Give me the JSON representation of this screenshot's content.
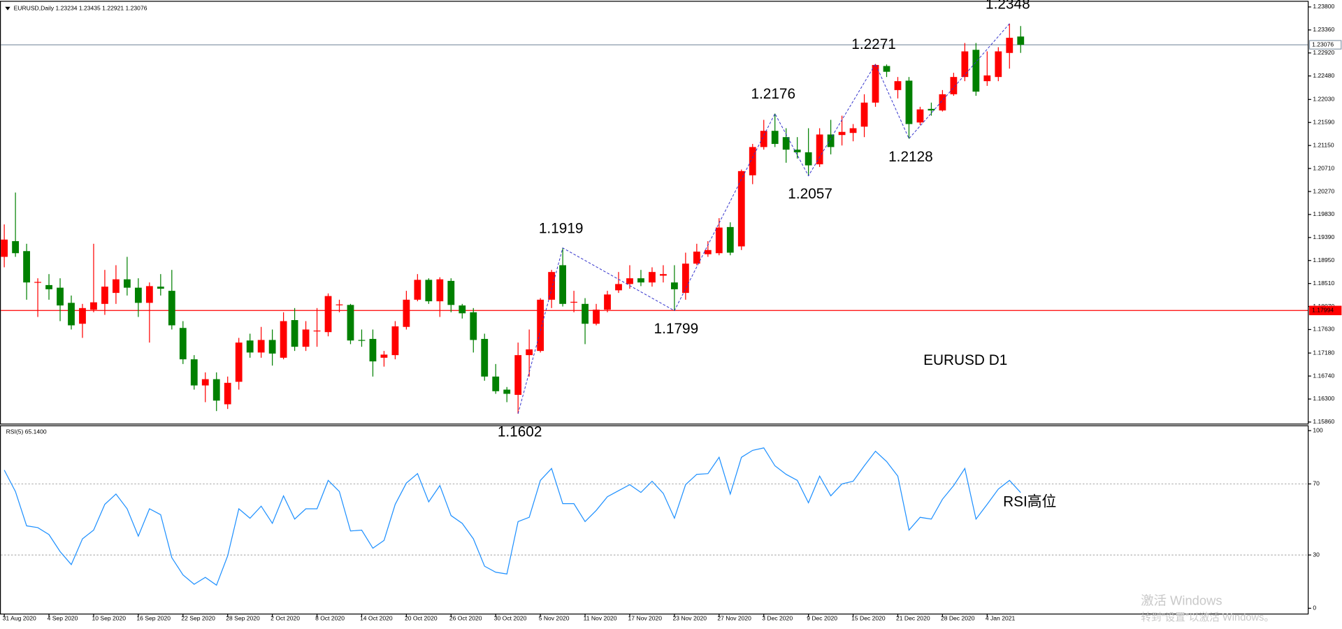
{
  "chart_data": [
    {
      "type": "candlestick",
      "title": "EURUSD,Daily  1.23234 1.23435 1.22921 1.23076",
      "label": "EURUSD D1",
      "up_color": "#ff0000",
      "down_color": "#008000",
      "categories": [
        "31 Aug 2020",
        null,
        null,
        null,
        "4 Sep 2020",
        null,
        null,
        null,
        "10 Sep 2020",
        null,
        null,
        null,
        "16 Sep 2020",
        null,
        null,
        null,
        "22 Sep 2020",
        null,
        null,
        null,
        "28 Sep 2020",
        null,
        null,
        null,
        "2 Oct 2020",
        null,
        null,
        null,
        "8 Oct 2020",
        null,
        null,
        null,
        "14 Oct 2020",
        null,
        null,
        null,
        "20 Oct 2020",
        null,
        null,
        null,
        "26 Oct 2020",
        null,
        null,
        null,
        "30 Oct 2020",
        null,
        null,
        null,
        "5 Nov 2020",
        null,
        null,
        null,
        "11 Nov 2020",
        null,
        null,
        null,
        "17 Nov 2020",
        null,
        null,
        null,
        "23 Nov 2020",
        null,
        null,
        null,
        "27 Nov 2020",
        null,
        null,
        null,
        "3 Dec 2020",
        null,
        null,
        null,
        "9 Dec 2020",
        null,
        null,
        null,
        "15 Dec 2020",
        null,
        null,
        null,
        "21 Dec 2020",
        null,
        null,
        null,
        "28 Dec 2020",
        null,
        null,
        null,
        "4 Jan 2021",
        null,
        null,
        null
      ],
      "open": [
        1.1902,
        1.1932,
        1.1913,
        1.1853,
        1.1848,
        1.1843,
        1.1814,
        1.1774,
        1.1801,
        1.1812,
        1.1833,
        1.1859,
        1.1843,
        1.1814,
        1.1845,
        1.1837,
        1.1766,
        1.1706,
        1.1656,
        1.1668,
        1.162,
        1.1663,
        1.1742,
        1.1719,
        1.1743,
        1.1709,
        1.1781,
        1.173,
        1.176,
        1.1758,
        1.181,
        1.181,
        1.1743,
        1.1745,
        1.1709,
        1.1714,
        1.1768,
        1.182,
        1.1858,
        1.1817,
        1.1856,
        1.1809,
        1.1796,
        1.1745,
        1.1673,
        1.1648,
        1.1638,
        1.1714,
        1.1722,
        1.182,
        1.1886,
        1.1815,
        1.1812,
        1.1774,
        1.1801,
        1.1838,
        1.185,
        1.1861,
        1.1853,
        1.1866,
        1.1853,
        1.1833,
        1.1889,
        1.1907,
        1.1909,
        1.1959,
        1.1922,
        1.2058,
        1.2112,
        1.2143,
        1.2131,
        1.2107,
        1.2102,
        1.2079,
        1.2136,
        1.2135,
        1.2139,
        1.2151,
        1.2197,
        1.2267,
        1.2221,
        1.2239,
        1.2159,
        1.2185,
        1.2182,
        1.2213,
        1.2246,
        1.2298,
        1.2238,
        1.2246,
        1.2292,
        1.23234
      ],
      "high": [
        1.1964,
        1.2025,
        1.1927,
        1.1861,
        1.1869,
        1.1861,
        1.1828,
        1.1812,
        1.1927,
        1.1877,
        1.1886,
        1.1902,
        1.1861,
        1.1853,
        1.1869,
        1.1877,
        1.1779,
        1.1714,
        1.1681,
        1.1681,
        1.1673,
        1.1747,
        1.1755,
        1.1768,
        1.1763,
        1.1796,
        1.1804,
        1.1779,
        1.1804,
        1.1832,
        1.182,
        1.1812,
        1.1763,
        1.1763,
        1.1722,
        1.1779,
        1.1837,
        1.1869,
        1.1861,
        1.1863,
        1.1861,
        1.1812,
        1.1804,
        1.1755,
        1.1697,
        1.1653,
        1.1738,
        1.1763,
        1.1823,
        1.1877,
        1.1919,
        1.1837,
        1.1823,
        1.1812,
        1.1837,
        1.1873,
        1.1886,
        1.1877,
        1.1882,
        1.1886,
        1.1886,
        1.191,
        1.1927,
        1.1932,
        1.1976,
        1.1968,
        1.2069,
        1.2118,
        1.2164,
        1.2176,
        1.2148,
        1.2131,
        1.2148,
        1.2148,
        1.2164,
        1.2172,
        1.2156,
        1.2213,
        1.2271,
        1.227,
        1.2246,
        1.2246,
        1.2189,
        1.2197,
        1.2221,
        1.2254,
        1.2311,
        1.2311,
        1.2295,
        1.2303,
        1.2348,
        1.23435
      ],
      "low": [
        1.1882,
        1.1902,
        1.182,
        1.1787,
        1.182,
        1.1779,
        1.1763,
        1.1747,
        1.1796,
        1.1791,
        1.1812,
        1.1828,
        1.1787,
        1.1738,
        1.1828,
        1.1763,
        1.1697,
        1.1648,
        1.1624,
        1.1607,
        1.1611,
        1.1648,
        1.1709,
        1.1709,
        1.1694,
        1.1706,
        1.1722,
        1.1722,
        1.173,
        1.175,
        1.1796,
        1.1735,
        1.173,
        1.1673,
        1.1692,
        1.1706,
        1.1763,
        1.1817,
        1.1812,
        1.1787,
        1.1796,
        1.1784,
        1.1719,
        1.1665,
        1.164,
        1.1624,
        1.1602,
        1.1673,
        1.1719,
        1.1804,
        1.1807,
        1.1796,
        1.1735,
        1.1771,
        1.1796,
        1.1833,
        1.1841,
        1.1846,
        1.1845,
        1.1853,
        1.1799,
        1.182,
        1.1886,
        1.1902,
        1.1905,
        1.1905,
        1.1915,
        1.2041,
        1.2107,
        1.2112,
        1.2082,
        1.209,
        1.2057,
        1.2074,
        1.2098,
        1.2115,
        1.2123,
        1.2131,
        1.2189,
        1.2246,
        1.2205,
        1.2128,
        1.2154,
        1.2172,
        1.218,
        1.221,
        1.2238,
        1.221,
        1.2229,
        1.2238,
        1.2262,
        1.22921
      ],
      "close": [
        1.1935,
        1.1909,
        1.1853,
        1.1854,
        1.184,
        1.1809,
        1.1771,
        1.1804,
        1.1815,
        1.1845,
        1.1859,
        1.1843,
        1.1814,
        1.1846,
        1.1841,
        1.1771,
        1.1706,
        1.1656,
        1.1668,
        1.1627,
        1.1661,
        1.1738,
        1.1719,
        1.1743,
        1.1717,
        1.1779,
        1.173,
        1.1763,
        1.1761,
        1.1827,
        1.1811,
        1.1742,
        1.1742,
        1.1702,
        1.1715,
        1.1769,
        1.182,
        1.1858,
        1.1817,
        1.1859,
        1.181,
        1.1794,
        1.1743,
        1.1673,
        1.1645,
        1.164,
        1.1714,
        1.1725,
        1.182,
        1.1873,
        1.1812,
        1.1816,
        1.1774,
        1.1801,
        1.183,
        1.185,
        1.1861,
        1.1853,
        1.1873,
        1.1869,
        1.184,
        1.1889,
        1.1912,
        1.1915,
        1.1958,
        1.191,
        1.2066,
        1.2112,
        1.2143,
        1.2118,
        1.2107,
        1.2102,
        1.2077,
        1.2136,
        1.2112,
        1.2141,
        1.2148,
        1.2197,
        1.2269,
        1.2256,
        1.2238,
        1.2156,
        1.2184,
        1.2182,
        1.2213,
        1.2246,
        1.2295,
        1.2218,
        1.2249,
        1.2295,
        1.2321,
        1.23076
      ],
      "annotations": [
        1.1919,
        1.1799,
        1.1602,
        1.2176,
        1.2057,
        1.2271,
        1.2128,
        1.2348
      ],
      "annotation_color": "#ff0000",
      "zigzag_color": "#3333cc",
      "hlines": [
        {
          "value": 1.23076,
          "color": "#8899aa",
          "label_fill": "#ffffff",
          "label_color": "#000000"
        },
        {
          "value": 1.17994,
          "color": "#ff0000",
          "label_fill": "#ff0000",
          "label_color": "#ffffff"
        }
      ],
      "ylim": [
        1.1583,
        1.239
      ],
      "yticks": [
        {
          "value": 1.238,
          "label": "1.23800"
        },
        {
          "value": 1.2336,
          "label": "1.23360"
        },
        {
          "value": 1.2292,
          "label": "1.22920"
        },
        {
          "value": 1.2248,
          "label": "1.22480"
        },
        {
          "value": 1.2203,
          "label": "1.22030"
        },
        {
          "value": 1.2159,
          "label": "1.21590"
        },
        {
          "value": 1.2115,
          "label": "1.21150"
        },
        {
          "value": 1.2071,
          "label": "1.20710"
        },
        {
          "value": 1.2027,
          "label": "1.20270"
        },
        {
          "value": 1.1983,
          "label": "1.19830"
        },
        {
          "value": 1.1939,
          "label": "1.19390"
        },
        {
          "value": 1.1895,
          "label": "1.18950"
        },
        {
          "value": 1.1851,
          "label": "1.18510"
        },
        {
          "value": 1.1807,
          "label": "1.18070"
        },
        {
          "value": 1.1763,
          "label": "1.17630"
        },
        {
          "value": 1.1718,
          "label": "1.17180"
        },
        {
          "value": 1.1674,
          "label": "1.16740"
        },
        {
          "value": 1.163,
          "label": "1.16300"
        },
        {
          "value": 1.1586,
          "label": "1.15860"
        }
      ]
    },
    {
      "type": "line",
      "title": "RSI(5) 65.1400",
      "label": "RSI高位",
      "color": "#1e90ff",
      "values": [
        77.8,
        65.7,
        46.4,
        45.4,
        41.5,
        31.9,
        24.6,
        39.1,
        44.0,
        58.5,
        64.3,
        56.0,
        40.6,
        56.0,
        52.7,
        28.5,
        18.8,
        13.5,
        17.4,
        13.0,
        29.5,
        56.0,
        50.7,
        57.5,
        47.8,
        63.3,
        50.2,
        56.0,
        56.0,
        72.0,
        65.7,
        43.5,
        44.0,
        33.8,
        38.2,
        58.5,
        70.5,
        75.8,
        59.9,
        69.1,
        52.2,
        47.8,
        39.1,
        23.7,
        20.3,
        19.3,
        48.8,
        51.2,
        72.0,
        78.7,
        58.9,
        58.9,
        48.8,
        55.1,
        62.8,
        66.2,
        69.6,
        65.2,
        71.5,
        64.7,
        50.7,
        69.6,
        75.4,
        75.8,
        85.0,
        64.3,
        85.0,
        88.9,
        90.3,
        80.2,
        75.4,
        72.0,
        59.4,
        74.4,
        63.3,
        70.0,
        71.5,
        80.2,
        88.4,
        82.6,
        74.4,
        44.0,
        51.2,
        50.2,
        61.4,
        69.1,
        78.7,
        50.2,
        58.5,
        67.1,
        72.0,
        65.14
      ],
      "levels": [
        70,
        30
      ],
      "ylim": [
        -3,
        103
      ],
      "yticks": [
        100,
        70,
        30,
        0
      ]
    }
  ],
  "watermark": [
    "激活 Windows",
    "转到“设置”以激活 Windows。"
  ]
}
